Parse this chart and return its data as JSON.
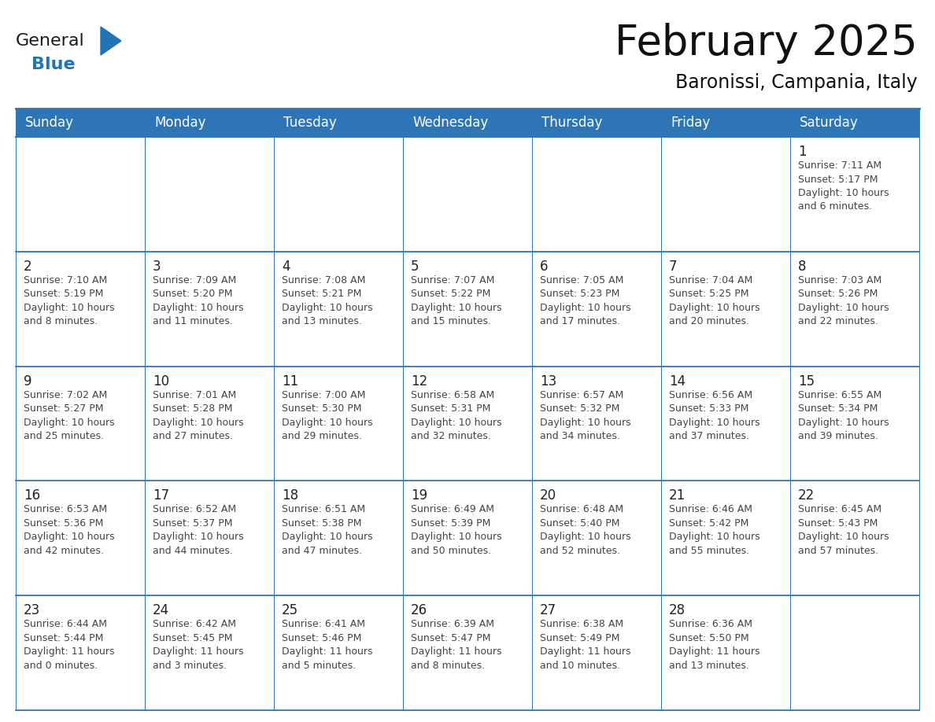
{
  "title": "February 2025",
  "subtitle": "Baronissi, Campania, Italy",
  "header_bg": "#2E75B6",
  "header_text": "#FFFFFF",
  "border_color": "#2E75B6",
  "cell_border_color": "#AAAAAA",
  "days_of_week": [
    "Sunday",
    "Monday",
    "Tuesday",
    "Wednesday",
    "Thursday",
    "Friday",
    "Saturday"
  ],
  "weeks": [
    [
      {
        "day": "",
        "info": ""
      },
      {
        "day": "",
        "info": ""
      },
      {
        "day": "",
        "info": ""
      },
      {
        "day": "",
        "info": ""
      },
      {
        "day": "",
        "info": ""
      },
      {
        "day": "",
        "info": ""
      },
      {
        "day": "1",
        "info": "Sunrise: 7:11 AM\nSunset: 5:17 PM\nDaylight: 10 hours\nand 6 minutes."
      }
    ],
    [
      {
        "day": "2",
        "info": "Sunrise: 7:10 AM\nSunset: 5:19 PM\nDaylight: 10 hours\nand 8 minutes."
      },
      {
        "day": "3",
        "info": "Sunrise: 7:09 AM\nSunset: 5:20 PM\nDaylight: 10 hours\nand 11 minutes."
      },
      {
        "day": "4",
        "info": "Sunrise: 7:08 AM\nSunset: 5:21 PM\nDaylight: 10 hours\nand 13 minutes."
      },
      {
        "day": "5",
        "info": "Sunrise: 7:07 AM\nSunset: 5:22 PM\nDaylight: 10 hours\nand 15 minutes."
      },
      {
        "day": "6",
        "info": "Sunrise: 7:05 AM\nSunset: 5:23 PM\nDaylight: 10 hours\nand 17 minutes."
      },
      {
        "day": "7",
        "info": "Sunrise: 7:04 AM\nSunset: 5:25 PM\nDaylight: 10 hours\nand 20 minutes."
      },
      {
        "day": "8",
        "info": "Sunrise: 7:03 AM\nSunset: 5:26 PM\nDaylight: 10 hours\nand 22 minutes."
      }
    ],
    [
      {
        "day": "9",
        "info": "Sunrise: 7:02 AM\nSunset: 5:27 PM\nDaylight: 10 hours\nand 25 minutes."
      },
      {
        "day": "10",
        "info": "Sunrise: 7:01 AM\nSunset: 5:28 PM\nDaylight: 10 hours\nand 27 minutes."
      },
      {
        "day": "11",
        "info": "Sunrise: 7:00 AM\nSunset: 5:30 PM\nDaylight: 10 hours\nand 29 minutes."
      },
      {
        "day": "12",
        "info": "Sunrise: 6:58 AM\nSunset: 5:31 PM\nDaylight: 10 hours\nand 32 minutes."
      },
      {
        "day": "13",
        "info": "Sunrise: 6:57 AM\nSunset: 5:32 PM\nDaylight: 10 hours\nand 34 minutes."
      },
      {
        "day": "14",
        "info": "Sunrise: 6:56 AM\nSunset: 5:33 PM\nDaylight: 10 hours\nand 37 minutes."
      },
      {
        "day": "15",
        "info": "Sunrise: 6:55 AM\nSunset: 5:34 PM\nDaylight: 10 hours\nand 39 minutes."
      }
    ],
    [
      {
        "day": "16",
        "info": "Sunrise: 6:53 AM\nSunset: 5:36 PM\nDaylight: 10 hours\nand 42 minutes."
      },
      {
        "day": "17",
        "info": "Sunrise: 6:52 AM\nSunset: 5:37 PM\nDaylight: 10 hours\nand 44 minutes."
      },
      {
        "day": "18",
        "info": "Sunrise: 6:51 AM\nSunset: 5:38 PM\nDaylight: 10 hours\nand 47 minutes."
      },
      {
        "day": "19",
        "info": "Sunrise: 6:49 AM\nSunset: 5:39 PM\nDaylight: 10 hours\nand 50 minutes."
      },
      {
        "day": "20",
        "info": "Sunrise: 6:48 AM\nSunset: 5:40 PM\nDaylight: 10 hours\nand 52 minutes."
      },
      {
        "day": "21",
        "info": "Sunrise: 6:46 AM\nSunset: 5:42 PM\nDaylight: 10 hours\nand 55 minutes."
      },
      {
        "day": "22",
        "info": "Sunrise: 6:45 AM\nSunset: 5:43 PM\nDaylight: 10 hours\nand 57 minutes."
      }
    ],
    [
      {
        "day": "23",
        "info": "Sunrise: 6:44 AM\nSunset: 5:44 PM\nDaylight: 11 hours\nand 0 minutes."
      },
      {
        "day": "24",
        "info": "Sunrise: 6:42 AM\nSunset: 5:45 PM\nDaylight: 11 hours\nand 3 minutes."
      },
      {
        "day": "25",
        "info": "Sunrise: 6:41 AM\nSunset: 5:46 PM\nDaylight: 11 hours\nand 5 minutes."
      },
      {
        "day": "26",
        "info": "Sunrise: 6:39 AM\nSunset: 5:47 PM\nDaylight: 11 hours\nand 8 minutes."
      },
      {
        "day": "27",
        "info": "Sunrise: 6:38 AM\nSunset: 5:49 PM\nDaylight: 11 hours\nand 10 minutes."
      },
      {
        "day": "28",
        "info": "Sunrise: 6:36 AM\nSunset: 5:50 PM\nDaylight: 11 hours\nand 13 minutes."
      },
      {
        "day": "",
        "info": ""
      }
    ]
  ],
  "logo_color_general": "#1a1a1a",
  "logo_color_blue": "#2175B5",
  "title_fontsize": 38,
  "subtitle_fontsize": 17,
  "header_fontsize": 12,
  "day_num_fontsize": 12,
  "info_fontsize": 9
}
